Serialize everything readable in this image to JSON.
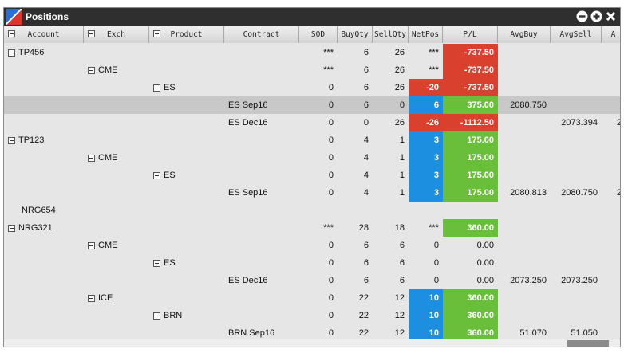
{
  "window": {
    "title": "Positions"
  },
  "columns": [
    {
      "label": "Account",
      "collapsible": true
    },
    {
      "label": "Exch",
      "collapsible": true
    },
    {
      "label": "Product",
      "collapsible": true
    },
    {
      "label": "Contract"
    },
    {
      "label": "SOD"
    },
    {
      "label": "BuyQty"
    },
    {
      "label": "SellQty"
    },
    {
      "label": "NetPos"
    },
    {
      "label": "P/L"
    },
    {
      "label": "AvgBuy"
    },
    {
      "label": "AvgSell"
    },
    {
      "label": "A"
    }
  ],
  "rows": [
    {
      "level": 0,
      "account": "TP456",
      "sod": "***",
      "buy": "6",
      "sell": "26",
      "net": "***",
      "pl": "-737.50",
      "pl_style": "red"
    },
    {
      "level": 1,
      "exch": "CME",
      "sod": "***",
      "buy": "6",
      "sell": "26",
      "net": "***",
      "pl": "-737.50",
      "pl_style": "red"
    },
    {
      "level": 2,
      "product": "ES",
      "sod": "0",
      "buy": "6",
      "sell": "26",
      "net": "-20",
      "net_style": "red",
      "pl": "-737.50",
      "pl_style": "red"
    },
    {
      "level": 3,
      "contract": "ES Sep16",
      "sod": "0",
      "buy": "6",
      "sell": "0",
      "net": "6",
      "net_style": "blue",
      "pl": "375.00",
      "pl_style": "green",
      "avgbuy": "2080.750",
      "selected": true
    },
    {
      "level": 3,
      "contract": "ES Dec16",
      "sod": "0",
      "buy": "0",
      "sell": "26",
      "net": "-26",
      "net_style": "red",
      "pl": "-1112.50",
      "pl_style": "red",
      "avgsell": "2073.394",
      "trail": "2"
    },
    {
      "level": 0,
      "account": "TP123",
      "sod": "0",
      "buy": "4",
      "sell": "1",
      "net": "3",
      "net_style": "blue",
      "pl": "175.00",
      "pl_style": "green"
    },
    {
      "level": 1,
      "exch": "CME",
      "sod": "0",
      "buy": "4",
      "sell": "1",
      "net": "3",
      "net_style": "blue",
      "pl": "175.00",
      "pl_style": "green"
    },
    {
      "level": 2,
      "product": "ES",
      "sod": "0",
      "buy": "4",
      "sell": "1",
      "net": "3",
      "net_style": "blue",
      "pl": "175.00",
      "pl_style": "green"
    },
    {
      "level": 3,
      "contract": "ES Sep16",
      "sod": "0",
      "buy": "4",
      "sell": "1",
      "net": "3",
      "net_style": "blue",
      "pl": "175.00",
      "pl_style": "green",
      "avgbuy": "2080.813",
      "avgsell": "2080.750",
      "trail": "2"
    },
    {
      "level": 0,
      "account": "NRG654",
      "leaf": true
    },
    {
      "level": 0,
      "account": "NRG321",
      "sod": "***",
      "buy": "28",
      "sell": "18",
      "net": "***",
      "pl": "360.00",
      "pl_style": "green"
    },
    {
      "level": 1,
      "exch": "CME",
      "sod": "0",
      "buy": "6",
      "sell": "6",
      "net": "0",
      "pl": "0.00"
    },
    {
      "level": 2,
      "product": "ES",
      "sod": "0",
      "buy": "6",
      "sell": "6",
      "net": "0",
      "pl": "0.00"
    },
    {
      "level": 3,
      "contract": "ES Dec16",
      "sod": "0",
      "buy": "6",
      "sell": "6",
      "net": "0",
      "pl": "0.00",
      "avgbuy": "2073.250",
      "avgsell": "2073.250"
    },
    {
      "level": 1,
      "exch": "ICE",
      "sod": "0",
      "buy": "22",
      "sell": "12",
      "net": "10",
      "net_style": "blue",
      "pl": "360.00",
      "pl_style": "green"
    },
    {
      "level": 2,
      "product": "BRN",
      "sod": "0",
      "buy": "22",
      "sell": "12",
      "net": "10",
      "net_style": "blue",
      "pl": "360.00",
      "pl_style": "green"
    },
    {
      "level": 3,
      "contract": "BRN Sep16",
      "sod": "0",
      "buy": "22",
      "sell": "12",
      "net": "10",
      "net_style": "blue",
      "pl": "360.00",
      "pl_style": "green",
      "avgbuy": "51.070",
      "avgsell": "51.050"
    }
  ],
  "icons": {
    "logo": "app-logo-icon",
    "minimize": "minus-circle-icon",
    "add": "plus-circle-icon",
    "close": "close-icon"
  },
  "colors": {
    "negative": "#d9412e",
    "position": "#1c8fe0",
    "positive": "#69bf3a",
    "titlebar": "#2f2f2f"
  }
}
